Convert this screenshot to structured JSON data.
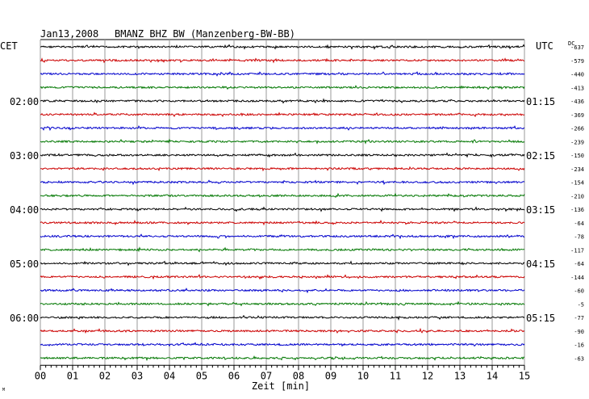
{
  "header": {
    "date": "Jan13,2008",
    "station": "BMANZ BHZ BW (Manzenberg-BW-BB)"
  },
  "left_axis_title": "CET",
  "right_axis_title": "UTC",
  "dc_title": "DC",
  "corner_mark": "M",
  "colors": [
    "#000000",
    "#cc0000",
    "#0000cc",
    "#007700"
  ],
  "grid_color": "#999999",
  "chart_data": {
    "type": "line",
    "title": "BMANZ BHZ BW (Manzenberg-BW-BB)",
    "xlabel": "Zeit [min]",
    "x_ticks": [
      "00",
      "01",
      "02",
      "03",
      "04",
      "05",
      "06",
      "07",
      "08",
      "09",
      "10",
      "11",
      "12",
      "13",
      "14",
      "15"
    ],
    "xlim": [
      0,
      15
    ],
    "rows_per_hour": 4,
    "traces": 24,
    "left_time_labels": [
      {
        "row": 4,
        "label": "02:00"
      },
      {
        "row": 8,
        "label": "03:00"
      },
      {
        "row": 12,
        "label": "04:00"
      },
      {
        "row": 16,
        "label": "05:00"
      },
      {
        "row": 20,
        "label": "06:00"
      }
    ],
    "right_time_labels": [
      {
        "row": 4,
        "label": "01:15"
      },
      {
        "row": 8,
        "label": "02:15"
      },
      {
        "row": 12,
        "label": "03:15"
      },
      {
        "row": 16,
        "label": "04:15"
      },
      {
        "row": 20,
        "label": "05:15"
      }
    ],
    "dc_offsets": [
      "-637",
      "-579",
      "-440",
      "-413",
      "-436",
      "-369",
      "-266",
      "-239",
      "-150",
      "-234",
      "-154",
      "-210",
      "-136",
      "-64",
      "-78",
      "-117",
      "-64",
      "-144",
      "-60",
      "-5",
      "-77",
      "-90",
      "-16",
      "-63"
    ]
  }
}
